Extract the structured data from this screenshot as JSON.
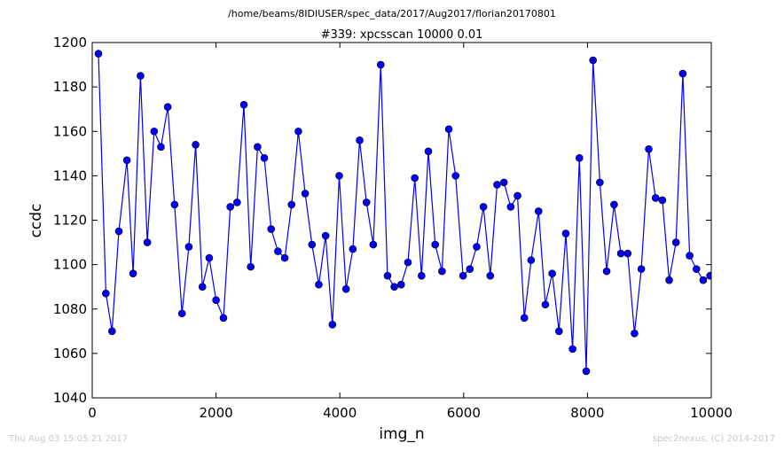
{
  "figure": {
    "suptitle": "/home/beams/8IDIUSER/spec_data/2017/Aug2017/florian20170801",
    "footer_left": "Thu Aug 03 15:05:21 2017",
    "footer_right": "spec2nexus, (C) 2014-2017"
  },
  "chart_data": {
    "type": "line",
    "title": "#339: xpcsscan 10000 0.01",
    "xlabel": "img_n",
    "ylabel": "ccdc",
    "xlim": [
      0,
      10000
    ],
    "ylim": [
      1040,
      1200
    ],
    "xticks": [
      0,
      2000,
      4000,
      6000,
      8000,
      10000
    ],
    "yticks": [
      1040,
      1060,
      1080,
      1100,
      1120,
      1140,
      1160,
      1180,
      1200
    ],
    "xtick_labels": [
      "0",
      "2000",
      "4000",
      "6000",
      "8000",
      "10000"
    ],
    "ytick_labels": [
      "1040",
      "1060",
      "1080",
      "1100",
      "1120",
      "1140",
      "1160",
      "1180",
      "1200"
    ],
    "grid": false,
    "series": [
      {
        "color": "#0000ff",
        "marker": "circle",
        "x": [
          100,
          220,
          320,
          430,
          560,
          660,
          780,
          890,
          1000,
          1110,
          1220,
          1330,
          1450,
          1560,
          1670,
          1780,
          1890,
          2000,
          2120,
          2230,
          2340,
          2450,
          2560,
          2670,
          2780,
          2890,
          3000,
          3110,
          3220,
          3330,
          3440,
          3550,
          3660,
          3770,
          3880,
          3990,
          4100,
          4210,
          4320,
          4430,
          4540,
          4660,
          4770,
          4880,
          4990,
          5100,
          5210,
          5320,
          5430,
          5540,
          5650,
          5760,
          5870,
          5990,
          6100,
          6210,
          6320,
          6430,
          6540,
          6650,
          6760,
          6870,
          6980,
          7090,
          7210,
          7320,
          7430,
          7540,
          7650,
          7760,
          7870,
          7980,
          8090,
          8200,
          8310,
          8430,
          8540,
          8650,
          8760,
          8870,
          8990,
          9100,
          9210,
          9320,
          9430,
          9540,
          9650,
          9760,
          9870,
          9980
        ],
        "y": [
          1195,
          1087,
          1070,
          1115,
          1147,
          1096,
          1185,
          1110,
          1160,
          1153,
          1171,
          1127,
          1078,
          1108,
          1154,
          1090,
          1103,
          1084,
          1076,
          1126,
          1128,
          1172,
          1099,
          1153,
          1148,
          1116,
          1106,
          1103,
          1127,
          1160,
          1132,
          1109,
          1091,
          1113,
          1073,
          1140,
          1089,
          1107,
          1156,
          1128,
          1109,
          1190,
          1095,
          1090,
          1091,
          1101,
          1139,
          1095,
          1151,
          1109,
          1097,
          1161,
          1140,
          1095,
          1098,
          1108,
          1126,
          1095,
          1136,
          1137,
          1126,
          1131,
          1076,
          1102,
          1124,
          1082,
          1096,
          1070,
          1114,
          1062,
          1148,
          1052,
          1192,
          1137,
          1097,
          1127,
          1105,
          1105,
          1069,
          1098,
          1152,
          1130,
          1129,
          1093,
          1110,
          1186,
          1104,
          1098,
          1093,
          1095
        ]
      }
    ]
  }
}
